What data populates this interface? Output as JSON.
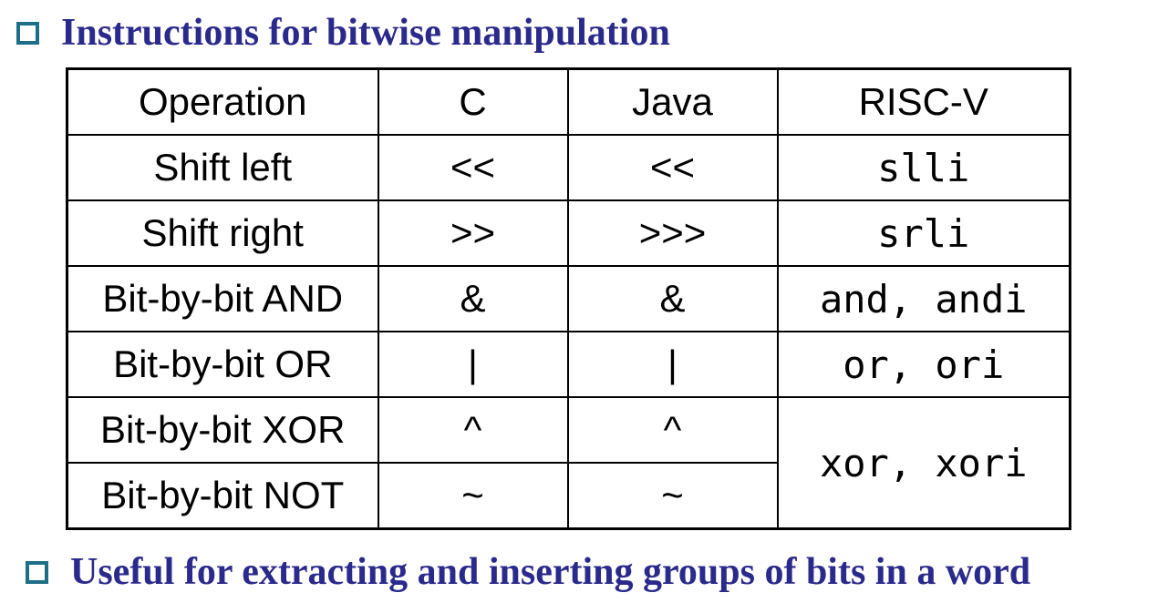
{
  "heading": "Instructions for bitwise manipulation",
  "footer": "Useful for extracting and inserting groups of bits in a word",
  "table": {
    "headers": [
      "Operation",
      "C",
      "Java",
      "RISC-V"
    ],
    "rows": [
      {
        "operation": "Shift left",
        "c": "<<",
        "java": "<<",
        "riscv": "slli"
      },
      {
        "operation": "Shift right",
        "c": ">>",
        "java": ">>>",
        "riscv": "srli"
      },
      {
        "operation": "Bit-by-bit AND",
        "c": "&",
        "java": "&",
        "riscv": "and, andi"
      },
      {
        "operation": "Bit-by-bit OR",
        "c": "|",
        "java": "|",
        "riscv": "or, ori"
      },
      {
        "operation": "Bit-by-bit XOR",
        "c": "^",
        "java": "^",
        "riscv": "xor, xori"
      },
      {
        "operation": "Bit-by-bit NOT",
        "c": "~",
        "java": "~"
      }
    ]
  },
  "colors": {
    "title_text": "#2a2a8c",
    "bullet_border": "#1d6f88",
    "table_border": "#000000"
  }
}
